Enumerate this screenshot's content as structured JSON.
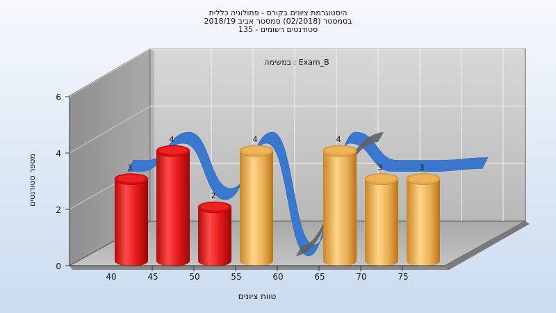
{
  "title_lines": [
    "היסטוגרמת ציונים בקורס - פתולוגיה כללית",
    "בסמסטר  (02/2018)  סמסטר אביב 2018/19",
    "סטודנטים רשומים - 135"
  ],
  "chart_data": {
    "type": "bar",
    "annotation": "במשימה : Exam_B",
    "xlabel": "טווח ציונים",
    "ylabel": "מספר סטודנטים",
    "categories": [
      "40",
      "45",
      "50",
      "55",
      "60",
      "65",
      "70",
      "75"
    ],
    "values": [
      3,
      4,
      2,
      4,
      0,
      4,
      3,
      3
    ],
    "bar_colors": [
      "#e11818",
      "#e11818",
      "#e11818",
      "#e0a040",
      "#e0a040",
      "#e0a040",
      "#e0a040",
      "#e0a040"
    ],
    "ylim": [
      0,
      6
    ],
    "yticks": [
      0,
      2,
      4,
      6
    ],
    "grid": true,
    "trend_color": "#3a78d0",
    "trend_highlight_color": "#606060"
  }
}
